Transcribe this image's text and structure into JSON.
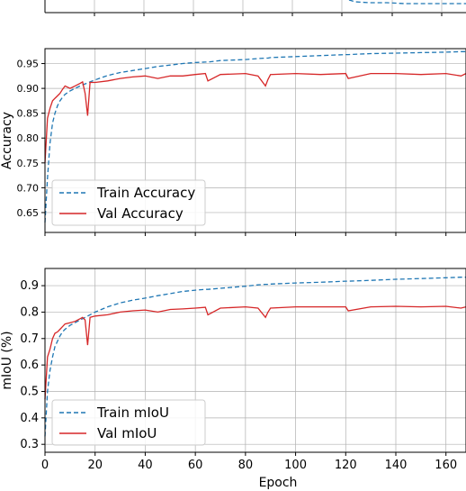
{
  "colors": {
    "train": "#1f77b4",
    "val": "#d62728",
    "grid": "#b0b0b0"
  },
  "chart_data": [
    {
      "type": "line",
      "note_visible": "bottom edge of a third subplot above (cropped)",
      "x": [
        118,
        130,
        140,
        150,
        160,
        168
      ],
      "series": [
        {
          "name": "",
          "style": "dashed",
          "color": "#1f77b4",
          "values": [
            null,
            null,
            null,
            null,
            null,
            null
          ]
        }
      ]
    },
    {
      "type": "line",
      "ylabel": "Accuracy",
      "xlabel": "",
      "xlim": [
        0,
        168
      ],
      "ylim": [
        0.61,
        0.98
      ],
      "yticks": [
        "0.65",
        "0.70",
        "0.75",
        "0.80",
        "0.85",
        "0.90",
        "0.95"
      ],
      "ytick_values": [
        0.65,
        0.7,
        0.75,
        0.8,
        0.85,
        0.9,
        0.95
      ],
      "grid": true,
      "legend_position": "lower-left",
      "x": [
        0,
        1,
        2,
        3,
        4,
        5,
        6,
        7,
        8,
        10,
        12,
        14,
        15,
        16,
        17,
        18,
        20,
        25,
        30,
        35,
        40,
        45,
        50,
        55,
        60,
        64,
        65,
        70,
        80,
        85,
        88,
        89,
        90,
        100,
        110,
        120,
        121,
        130,
        140,
        150,
        160,
        166,
        168
      ],
      "series": [
        {
          "name": "Train Accuracy",
          "style": "dashed",
          "color": "#1f77b4",
          "values": [
            0.63,
            0.72,
            0.79,
            0.83,
            0.85,
            0.865,
            0.875,
            0.882,
            0.888,
            0.895,
            0.9,
            0.905,
            0.907,
            0.909,
            0.911,
            0.913,
            0.917,
            0.926,
            0.932,
            0.936,
            0.94,
            0.944,
            0.947,
            0.95,
            0.952,
            0.953,
            0.953,
            0.956,
            0.958,
            0.96,
            0.961,
            0.961,
            0.962,
            0.964,
            0.966,
            0.968,
            0.968,
            0.97,
            0.971,
            0.972,
            0.973,
            0.974,
            0.974
          ]
        },
        {
          "name": "Val Accuracy",
          "style": "solid",
          "color": "#d62728",
          "values": [
            0.75,
            0.84,
            0.86,
            0.875,
            0.88,
            0.885,
            0.89,
            0.898,
            0.905,
            0.9,
            0.905,
            0.91,
            0.913,
            0.89,
            0.845,
            0.912,
            0.912,
            0.915,
            0.92,
            0.923,
            0.925,
            0.92,
            0.925,
            0.925,
            0.928,
            0.93,
            0.915,
            0.928,
            0.93,
            0.925,
            0.905,
            0.918,
            0.928,
            0.93,
            0.928,
            0.93,
            0.92,
            0.93,
            0.93,
            0.928,
            0.93,
            0.925,
            0.93
          ]
        }
      ]
    },
    {
      "type": "line",
      "ylabel": "mIoU (%)",
      "xlabel": "Epoch",
      "xlim": [
        0,
        168
      ],
      "ylim": [
        0.27,
        0.965
      ],
      "yticks": [
        "0.3",
        "0.4",
        "0.5",
        "0.6",
        "0.7",
        "0.8",
        "0.9"
      ],
      "ytick_values": [
        0.3,
        0.4,
        0.5,
        0.6,
        0.7,
        0.8,
        0.9
      ],
      "xticks": [
        "0",
        "20",
        "40",
        "60",
        "80",
        "100",
        "120",
        "140",
        "160"
      ],
      "xtick_values": [
        0,
        20,
        40,
        60,
        80,
        100,
        120,
        140,
        160
      ],
      "grid": true,
      "legend_position": "lower-left",
      "x": [
        0,
        1,
        2,
        3,
        4,
        5,
        6,
        7,
        8,
        10,
        12,
        14,
        15,
        16,
        17,
        18,
        20,
        25,
        30,
        35,
        40,
        45,
        50,
        55,
        60,
        64,
        65,
        70,
        80,
        85,
        88,
        89,
        90,
        100,
        110,
        120,
        121,
        130,
        140,
        150,
        160,
        166,
        168
      ],
      "series": [
        {
          "name": "Train mIoU",
          "style": "dashed",
          "color": "#1f77b4",
          "values": [
            0.33,
            0.5,
            0.58,
            0.63,
            0.67,
            0.69,
            0.71,
            0.725,
            0.735,
            0.75,
            0.76,
            0.77,
            0.775,
            0.78,
            0.785,
            0.79,
            0.8,
            0.82,
            0.835,
            0.845,
            0.853,
            0.862,
            0.87,
            0.878,
            0.883,
            0.886,
            0.886,
            0.89,
            0.898,
            0.903,
            0.905,
            0.905,
            0.906,
            0.91,
            0.913,
            0.917,
            0.917,
            0.92,
            0.924,
            0.927,
            0.93,
            0.932,
            0.932
          ]
        },
        {
          "name": "Val mIoU",
          "style": "solid",
          "color": "#d62728",
          "values": [
            0.47,
            0.63,
            0.66,
            0.7,
            0.72,
            0.725,
            0.735,
            0.745,
            0.755,
            0.76,
            0.765,
            0.775,
            0.78,
            0.77,
            0.675,
            0.78,
            0.785,
            0.79,
            0.8,
            0.805,
            0.808,
            0.8,
            0.81,
            0.812,
            0.815,
            0.818,
            0.79,
            0.815,
            0.82,
            0.815,
            0.78,
            0.8,
            0.815,
            0.82,
            0.82,
            0.82,
            0.805,
            0.82,
            0.822,
            0.82,
            0.822,
            0.815,
            0.82
          ]
        }
      ]
    }
  ]
}
